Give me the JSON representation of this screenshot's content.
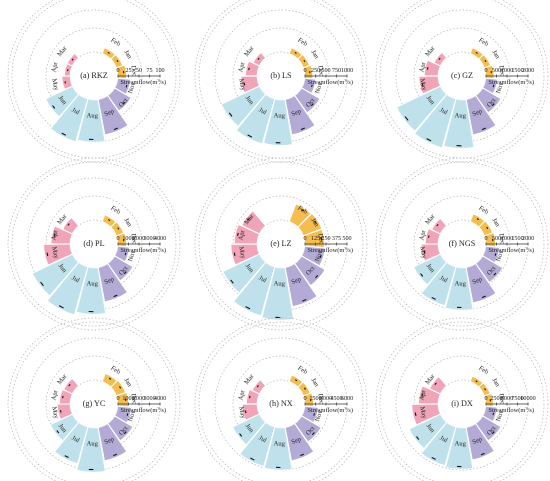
{
  "figure": {
    "colors": {
      "winter": "#f3bd4f",
      "spring": "#f0a4b7",
      "summer": "#bfe1ec",
      "autumn": "#b3aad6",
      "error": "#111111",
      "grid": "#b3b3b3"
    },
    "month_labels": [
      "Jan",
      "Feb",
      "Mar",
      "Apr",
      "May",
      "Jun",
      "Jul",
      "Aug",
      "Sep",
      "Oct",
      "Nov",
      "Dec"
    ],
    "season_of_month": [
      "winter",
      "winter",
      "spring",
      "spring",
      "spring",
      "summer",
      "summer",
      "summer",
      "autumn",
      "autumn",
      "autumn",
      "winter"
    ]
  },
  "chart_data": [
    {
      "type": "bar",
      "polar": true,
      "title": "(a) RKZ",
      "ylabel": "Streamflow(m3/s)",
      "ticks": [
        "0",
        "25",
        "50",
        "75",
        "100"
      ],
      "ymax": 100,
      "categories": [
        "Jan",
        "Feb",
        "Mar",
        "Apr",
        "May",
        "Jun",
        "Jul",
        "Aug",
        "Sep",
        "Oct",
        "Nov",
        "Dec"
      ],
      "values": [
        15,
        14,
        13,
        13,
        19,
        70,
        105,
        100,
        85,
        45,
        30,
        20
      ]
    },
    {
      "type": "bar",
      "polar": true,
      "title": "(b) LS",
      "ylabel": "Streamflow(m3/s)",
      "ticks": [
        "0",
        "250",
        "500",
        "750",
        "1000"
      ],
      "ymax": 1000,
      "categories": [
        "Jan",
        "Feb",
        "Mar",
        "Apr",
        "May",
        "Jun",
        "Jul",
        "Aug",
        "Sep",
        "Oct",
        "Nov",
        "Dec"
      ],
      "values": [
        150,
        140,
        160,
        270,
        380,
        1000,
        1100,
        1080,
        850,
        500,
        260,
        180
      ]
    },
    {
      "type": "bar",
      "polar": true,
      "title": "(c) GZ",
      "ylabel": "Streamflow(m3/s)",
      "ticks": [
        "0",
        "500",
        "1000",
        "1500",
        "2000"
      ],
      "ymax": 2000,
      "categories": [
        "Jan",
        "Feb",
        "Mar",
        "Apr",
        "May",
        "Jun",
        "Jul",
        "Aug",
        "Sep",
        "Oct",
        "Nov",
        "Dec"
      ],
      "values": [
        300,
        280,
        320,
        650,
        900,
        2300,
        2400,
        2300,
        1700,
        1000,
        550,
        380
      ]
    },
    {
      "type": "bar",
      "polar": true,
      "title": "(d) PL",
      "ylabel": "Streamflow(m3/s)",
      "ticks": [
        "0",
        "1000",
        "2000",
        "3000",
        "4000"
      ],
      "ymax": 4000,
      "categories": [
        "Jan",
        "Feb",
        "Mar",
        "Apr",
        "May",
        "Jun",
        "Jul",
        "Aug",
        "Sep",
        "Oct",
        "Nov",
        "Dec"
      ],
      "values": [
        700,
        650,
        1000,
        1800,
        2500,
        4200,
        4700,
        4400,
        3300,
        2000,
        1100,
        800
      ]
    },
    {
      "type": "bar",
      "polar": true,
      "title": "(e) LZ",
      "ylabel": "Streamflow(m3/s)",
      "ticks": [
        "0",
        "125",
        "250",
        "375",
        "500"
      ],
      "ymax": 500,
      "categories": [
        "Jan",
        "Feb",
        "Mar",
        "Apr",
        "May",
        "Jun",
        "Jul",
        "Aug",
        "Sep",
        "Oct",
        "Nov",
        "Dec"
      ],
      "values": [
        230,
        220,
        230,
        270,
        310,
        480,
        600,
        620,
        470,
        320,
        240,
        230
      ]
    },
    {
      "type": "bar",
      "polar": true,
      "title": "(f) NGS",
      "ylabel": "Streamflow(m3/s)",
      "ticks": [
        "0",
        "500",
        "1000",
        "1500",
        "2000"
      ],
      "ymax": 2000,
      "categories": [
        "Jan",
        "Feb",
        "Mar",
        "Apr",
        "May",
        "Jun",
        "Jul",
        "Aug",
        "Sep",
        "Oct",
        "Nov",
        "Dec"
      ],
      "values": [
        400,
        380,
        450,
        600,
        800,
        1400,
        1900,
        2000,
        1700,
        1100,
        650,
        450
      ]
    },
    {
      "type": "bar",
      "polar": true,
      "title": "(g) YC",
      "ylabel": "Streamflow(m3/s)",
      "ticks": [
        "0",
        "1000",
        "2000",
        "3000",
        "4000"
      ],
      "ymax": 4000,
      "categories": [
        "Jan",
        "Feb",
        "Mar",
        "Apr",
        "May",
        "Jun",
        "Jul",
        "Aug",
        "Sep",
        "Oct",
        "Nov",
        "Dec"
      ],
      "values": [
        900,
        800,
        900,
        1000,
        1200,
        2300,
        3600,
        4200,
        3200,
        2000,
        1300,
        1000
      ]
    },
    {
      "type": "bar",
      "polar": true,
      "title": "(h) NX",
      "ylabel": "Streamflow(m3/s)",
      "ticks": [
        "0",
        "1500",
        "3000",
        "4500",
        "6000"
      ],
      "ymax": 6000,
      "categories": [
        "Jan",
        "Feb",
        "Mar",
        "Apr",
        "May",
        "Jun",
        "Jul",
        "Aug",
        "Sep",
        "Oct",
        "Nov",
        "Dec"
      ],
      "values": [
        1000,
        950,
        1100,
        1500,
        2100,
        4200,
        5800,
        6000,
        4800,
        3200,
        1900,
        1200
      ]
    },
    {
      "type": "bar",
      "polar": true,
      "title": "(i) DX",
      "ylabel": "Streamflow(m3/s)",
      "ticks": [
        "0",
        "2500",
        "5000",
        "7500",
        "10000"
      ],
      "ymax": 10000,
      "categories": [
        "Jan",
        "Feb",
        "Mar",
        "Apr",
        "May",
        "Jun",
        "Jul",
        "Aug",
        "Sep",
        "Oct",
        "Nov",
        "Dec"
      ],
      "values": [
        1400,
        1300,
        2800,
        4600,
        6200,
        8200,
        9500,
        9800,
        7800,
        5000,
        2700,
        1700
      ]
    }
  ]
}
